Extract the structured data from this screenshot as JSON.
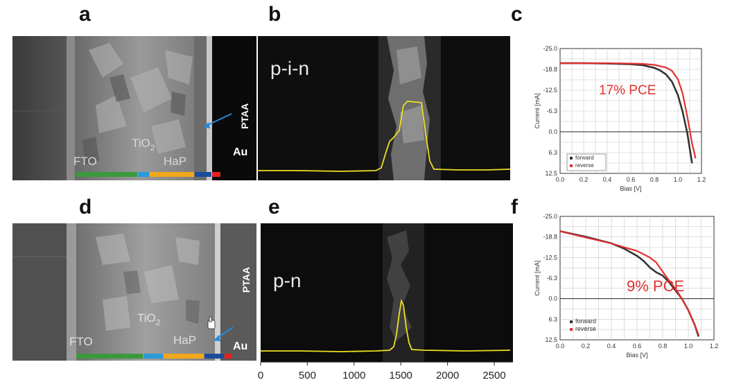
{
  "panel_letters": {
    "a": "a",
    "b": "b",
    "c": "c",
    "d": "d",
    "e": "e",
    "f": "f"
  },
  "sem_top": {
    "labels": {
      "fto": "FTO",
      "tio2_main": "TiO",
      "tio2_sub": "2",
      "hap": "HaP",
      "ptaa": "PTAA",
      "au": "Au"
    },
    "bar_colors": [
      "#3a9a3a",
      "#2a9ad8",
      "#f2a81a",
      "#1a4c9a",
      "#e82020"
    ]
  },
  "sem_bottom": {
    "labels": {
      "fto": "FTO",
      "tio2_main": "TiO",
      "tio2_sub": "2",
      "hap": "HaP",
      "ptaa": "PTAA",
      "au": "Au"
    },
    "bar_colors": [
      "#3a9a3a",
      "#2a9ad8",
      "#f2a81a",
      "#1a4c9a",
      "#e82020"
    ]
  },
  "ebic_top": {
    "label": "p-i-n",
    "trace_color": "#f0e020"
  },
  "ebic_bottom": {
    "label": "p-n",
    "trace_color": "#f0e020",
    "x_ticks": [
      "0",
      "500",
      "1000",
      "1500",
      "2000",
      "2500"
    ],
    "x_range": [
      0,
      2700
    ]
  },
  "chart_data": [
    {
      "type": "line",
      "panel": "c",
      "annotation": "17% PCE",
      "xlabel": "Bias [V]",
      "ylabel": "Current [mA]",
      "xlim": [
        0,
        1.2
      ],
      "ylim": [
        -25.0,
        12.5
      ],
      "y_inverted": true,
      "grid": true,
      "x_ticks": [
        "0.0",
        "0.2",
        "0.4",
        "0.6",
        "0.8",
        "1.0",
        "1.2"
      ],
      "y_ticks": [
        "-25.0",
        "-18.8",
        "-12.5",
        "-6.3",
        "0.0",
        "6.3",
        "12.5"
      ],
      "legend_position": "bottom-left",
      "series": [
        {
          "name": "forward",
          "color": "#333333",
          "x": [
            0,
            0.2,
            0.4,
            0.6,
            0.7,
            0.8,
            0.85,
            0.9,
            0.95,
            1.0,
            1.04,
            1.08,
            1.12
          ],
          "y": [
            -20.6,
            -20.6,
            -20.5,
            -20.3,
            -20.0,
            -19.2,
            -18.4,
            -17.2,
            -15.0,
            -11.0,
            -6.0,
            0.5,
            9.5
          ]
        },
        {
          "name": "reverse",
          "color": "#e03030",
          "x": [
            0,
            0.2,
            0.4,
            0.6,
            0.7,
            0.8,
            0.9,
            0.95,
            1.0,
            1.04,
            1.08,
            1.12,
            1.15
          ],
          "y": [
            -20.6,
            -20.6,
            -20.6,
            -20.5,
            -20.4,
            -20.1,
            -19.3,
            -18.3,
            -15.8,
            -11.5,
            -4.5,
            3.5,
            8.0
          ]
        }
      ]
    },
    {
      "type": "line",
      "panel": "f",
      "annotation": "9% PCE",
      "xlabel": "Bias [V]",
      "ylabel": "Current [mA]",
      "xlim": [
        0,
        1.2
      ],
      "ylim": [
        -25.0,
        12.5
      ],
      "y_inverted": true,
      "grid": true,
      "x_ticks": [
        "0.0",
        "0.2",
        "0.4",
        "0.6",
        "0.8",
        "1.0",
        "1.2"
      ],
      "y_ticks": [
        "-25.0",
        "-18.8",
        "-12.5",
        "-6.3",
        "0.0",
        "6.3",
        "12.5"
      ],
      "legend_position": "bottom-left",
      "series": [
        {
          "name": "forward",
          "color": "#333333",
          "x": [
            0,
            0.2,
            0.4,
            0.5,
            0.6,
            0.65,
            0.7,
            0.75,
            0.8,
            0.85,
            0.9,
            0.95,
            1.0,
            1.05,
            1.08
          ],
          "y": [
            -20.5,
            -18.8,
            -16.8,
            -15.2,
            -13.0,
            -11.5,
            -9.5,
            -8.0,
            -7.0,
            -5.0,
            -2.5,
            0.0,
            3.5,
            8.0,
            11.5
          ]
        },
        {
          "name": "reverse",
          "color": "#e03030",
          "x": [
            0,
            0.2,
            0.4,
            0.5,
            0.6,
            0.7,
            0.75,
            0.8,
            0.85,
            0.9,
            0.95,
            1.0,
            1.05,
            1.08
          ],
          "y": [
            -20.5,
            -18.6,
            -16.8,
            -15.6,
            -14.5,
            -12.5,
            -11.0,
            -8.2,
            -5.5,
            -3.0,
            0.0,
            3.5,
            8.0,
            11.0
          ]
        }
      ]
    }
  ]
}
